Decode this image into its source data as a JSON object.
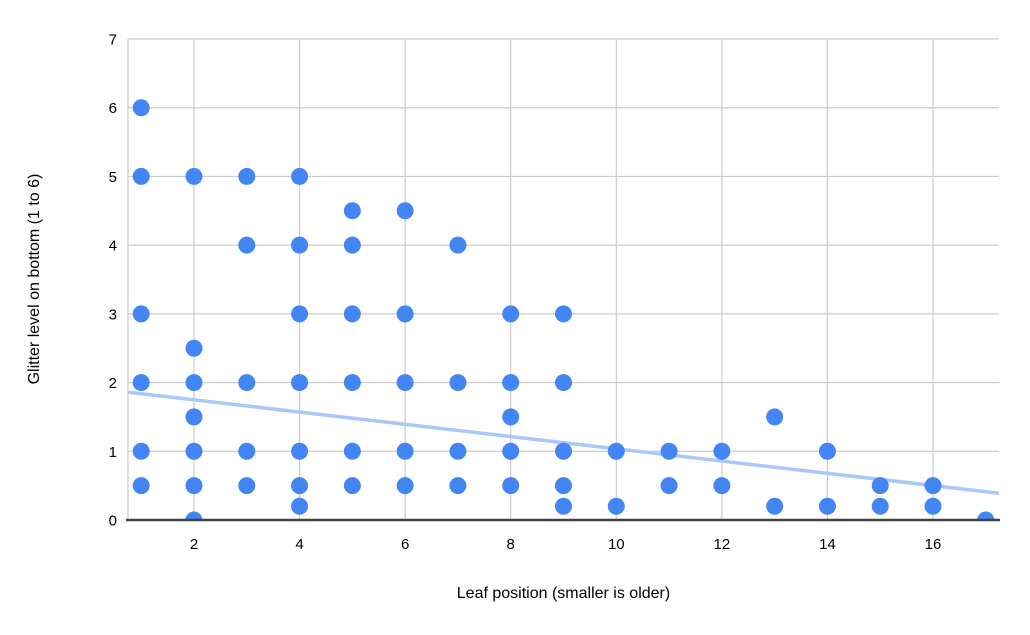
{
  "chart_data": {
    "type": "scatter",
    "title": "",
    "xlabel": "Leaf position (smaller is older)",
    "ylabel": "Glitter level on bottom (1 to 6)",
    "xlim": [
      0.75,
      17.25
    ],
    "ylim": [
      0,
      7
    ],
    "x_ticks": [
      2,
      4,
      6,
      8,
      10,
      12,
      14,
      16
    ],
    "y_ticks": [
      0,
      1,
      2,
      3,
      4,
      5,
      6,
      7
    ],
    "grid": true,
    "legend_position": "none",
    "points": [
      [
        1,
        6
      ],
      [
        1,
        5
      ],
      [
        1,
        3
      ],
      [
        1,
        2
      ],
      [
        1,
        1
      ],
      [
        1,
        0.5
      ],
      [
        2,
        5
      ],
      [
        2,
        2.5
      ],
      [
        2,
        2
      ],
      [
        2,
        1.5
      ],
      [
        2,
        1
      ],
      [
        2,
        0.5
      ],
      [
        2,
        0
      ],
      [
        3,
        5
      ],
      [
        3,
        4
      ],
      [
        3,
        2
      ],
      [
        3,
        1
      ],
      [
        3,
        0.5
      ],
      [
        4,
        5
      ],
      [
        4,
        4
      ],
      [
        4,
        3
      ],
      [
        4,
        2
      ],
      [
        4,
        1
      ],
      [
        4,
        0.5
      ],
      [
        4,
        0.2
      ],
      [
        5,
        4.5
      ],
      [
        5,
        4
      ],
      [
        5,
        3
      ],
      [
        5,
        2
      ],
      [
        5,
        1
      ],
      [
        5,
        0.5
      ],
      [
        6,
        4.5
      ],
      [
        6,
        3
      ],
      [
        6,
        2
      ],
      [
        6,
        1
      ],
      [
        6,
        0.5
      ],
      [
        7,
        4
      ],
      [
        7,
        2
      ],
      [
        7,
        1
      ],
      [
        7,
        0.5
      ],
      [
        8,
        3
      ],
      [
        8,
        2
      ],
      [
        8,
        1.5
      ],
      [
        8,
        1
      ],
      [
        8,
        0.5
      ],
      [
        9,
        3
      ],
      [
        9,
        2
      ],
      [
        9,
        1
      ],
      [
        9,
        0.5
      ],
      [
        9,
        0.2
      ],
      [
        10,
        1
      ],
      [
        10,
        0.2
      ],
      [
        11,
        1
      ],
      [
        11,
        0.5
      ],
      [
        12,
        1
      ],
      [
        12,
        0.5
      ],
      [
        13,
        1.5
      ],
      [
        13,
        0.2
      ],
      [
        14,
        1
      ],
      [
        14,
        0.2
      ],
      [
        15,
        0.5
      ],
      [
        15,
        0.2
      ],
      [
        16,
        0.5
      ],
      [
        16,
        0.2
      ],
      [
        17,
        0
      ]
    ],
    "trendline": {
      "x_start": 0.75,
      "y_start": 1.86,
      "x_end": 17.25,
      "y_end": 0.39
    },
    "colors": {
      "point": "#4285F4",
      "trendline": "#A8C7FA",
      "gridline": "#CCCCCC",
      "axis_line": "#424242",
      "text": "#000000",
      "background": "#FFFFFF"
    }
  }
}
